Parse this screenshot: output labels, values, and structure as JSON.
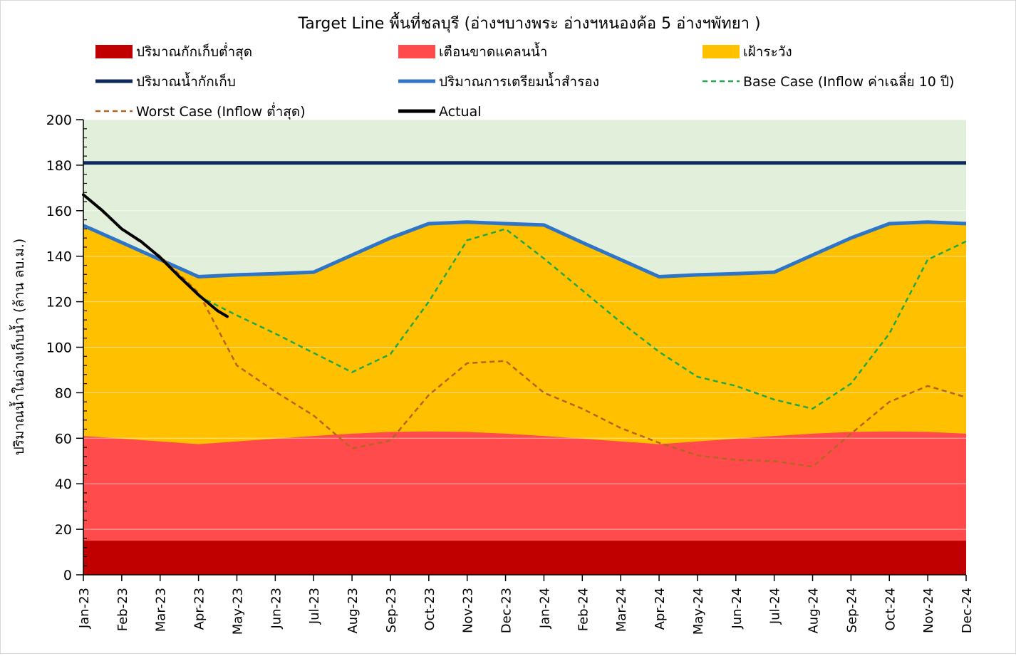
{
  "chart_data": {
    "type": "area",
    "title": "Target Line พื้นที่ชลบุรี (อ่างฯบางพระ อ่างฯหนองค้อ 5 อ่างฯพัทยา )",
    "ylabel": "ปริมาณน้ำในอ่างเก็บน้ำ (ล้าน ลบ.ม.)",
    "xlabel": "",
    "ylim": [
      0,
      200
    ],
    "yticks": [
      0,
      20,
      40,
      60,
      80,
      100,
      120,
      140,
      160,
      180,
      200
    ],
    "categories": [
      "Jan-23",
      "Feb-23",
      "Mar-23",
      "Apr-23",
      "May-23",
      "Jun-23",
      "Jul-23",
      "Aug-23",
      "Sep-23",
      "Oct-23",
      "Nov-23",
      "Dec-23",
      "Jan-24",
      "Feb-24",
      "Mar-24",
      "Apr-24",
      "May-24",
      "Jun-24",
      "Jul-24",
      "Aug-24",
      "Sep-24",
      "Oct-24",
      "Nov-24",
      "Dec-24"
    ],
    "legend": [
      {
        "name": "ปริมาณกักเก็บต่ำสุด",
        "kind": "box",
        "color": "#c00000"
      },
      {
        "name": "เตือนขาดแคลนน้ำ",
        "kind": "box",
        "color": "#ff4b4b"
      },
      {
        "name": "เฝ้าระวัง",
        "kind": "box",
        "color": "#ffc000"
      },
      {
        "name": "ปริมาณน้ำกักเก็บ",
        "kind": "line",
        "color": "#0f2a5e"
      },
      {
        "name": "ปริมาณการเตรียมน้ำสำรอง",
        "kind": "line",
        "color": "#2e75c7"
      },
      {
        "name": "Base Case (Inflow ค่าเฉลี่ย 10 ปี)",
        "kind": "dash",
        "color": "#1fa84a"
      },
      {
        "name": "Worst Case (Inflow ต่ำสุด)",
        "kind": "dash",
        "color": "#b5651d"
      },
      {
        "name": "Actual",
        "kind": "line",
        "color": "#000000"
      }
    ],
    "colors": {
      "background": "#e2efda",
      "minimum_storage": "#c00000",
      "shortage_warning": "#ff4b4b",
      "watch": "#ffc000",
      "capacity_line": "#0f2a5e",
      "reserve_line": "#2e75c7",
      "base_case": "#1fa84a",
      "worst_case": "#b5651d",
      "actual": "#000000"
    },
    "minimum_storage": [
      15,
      15,
      15,
      15,
      15,
      15,
      15,
      15,
      15,
      15,
      15,
      15,
      15,
      15,
      15,
      15,
      15,
      15,
      15,
      15,
      15,
      15,
      15,
      15
    ],
    "shortage_warning": [
      61,
      59.8,
      58.6,
      57.4,
      58.6,
      59.8,
      61,
      62,
      62.8,
      63,
      62.8,
      62,
      61,
      59.8,
      58.6,
      57.4,
      58.6,
      59.8,
      61,
      62,
      62.8,
      63,
      62.8,
      62
    ],
    "reserve": [
      153.5,
      146,
      138.5,
      131,
      131.8,
      132.3,
      133,
      140.5,
      148,
      154.3,
      155,
      154.3,
      153.7,
      146,
      138.5,
      131,
      131.8,
      132.3,
      133,
      140.5,
      148,
      154.3,
      155,
      154.3
    ],
    "capacity": [
      181,
      181,
      181,
      181,
      181,
      181,
      181,
      181,
      181,
      181,
      181,
      181,
      181,
      181,
      181,
      181,
      181,
      181,
      181,
      181,
      181,
      181,
      181,
      181
    ],
    "base_case": [
      null,
      null,
      null,
      122.5,
      114,
      106,
      97.5,
      89,
      97,
      120,
      147,
      152,
      139,
      125,
      111,
      98,
      87,
      83,
      77,
      73,
      84,
      106,
      138.5,
      146.5
    ],
    "worst_case": [
      167,
      152,
      140,
      124,
      92,
      80.5,
      70,
      55.5,
      59,
      79,
      93,
      94,
      80,
      73,
      64.5,
      58,
      52.5,
      50.5,
      50,
      47.5,
      62,
      76,
      83,
      78
    ],
    "actual": [
      {
        "x": 0,
        "y": 167
      },
      {
        "x": 0.5,
        "y": 160
      },
      {
        "x": 1.0,
        "y": 152
      },
      {
        "x": 1.5,
        "y": 146.5
      },
      {
        "x": 2.0,
        "y": 139.5
      },
      {
        "x": 2.5,
        "y": 131
      },
      {
        "x": 3.0,
        "y": 123
      },
      {
        "x": 3.5,
        "y": 116
      },
      {
        "x": 3.75,
        "y": 113.5
      }
    ]
  }
}
